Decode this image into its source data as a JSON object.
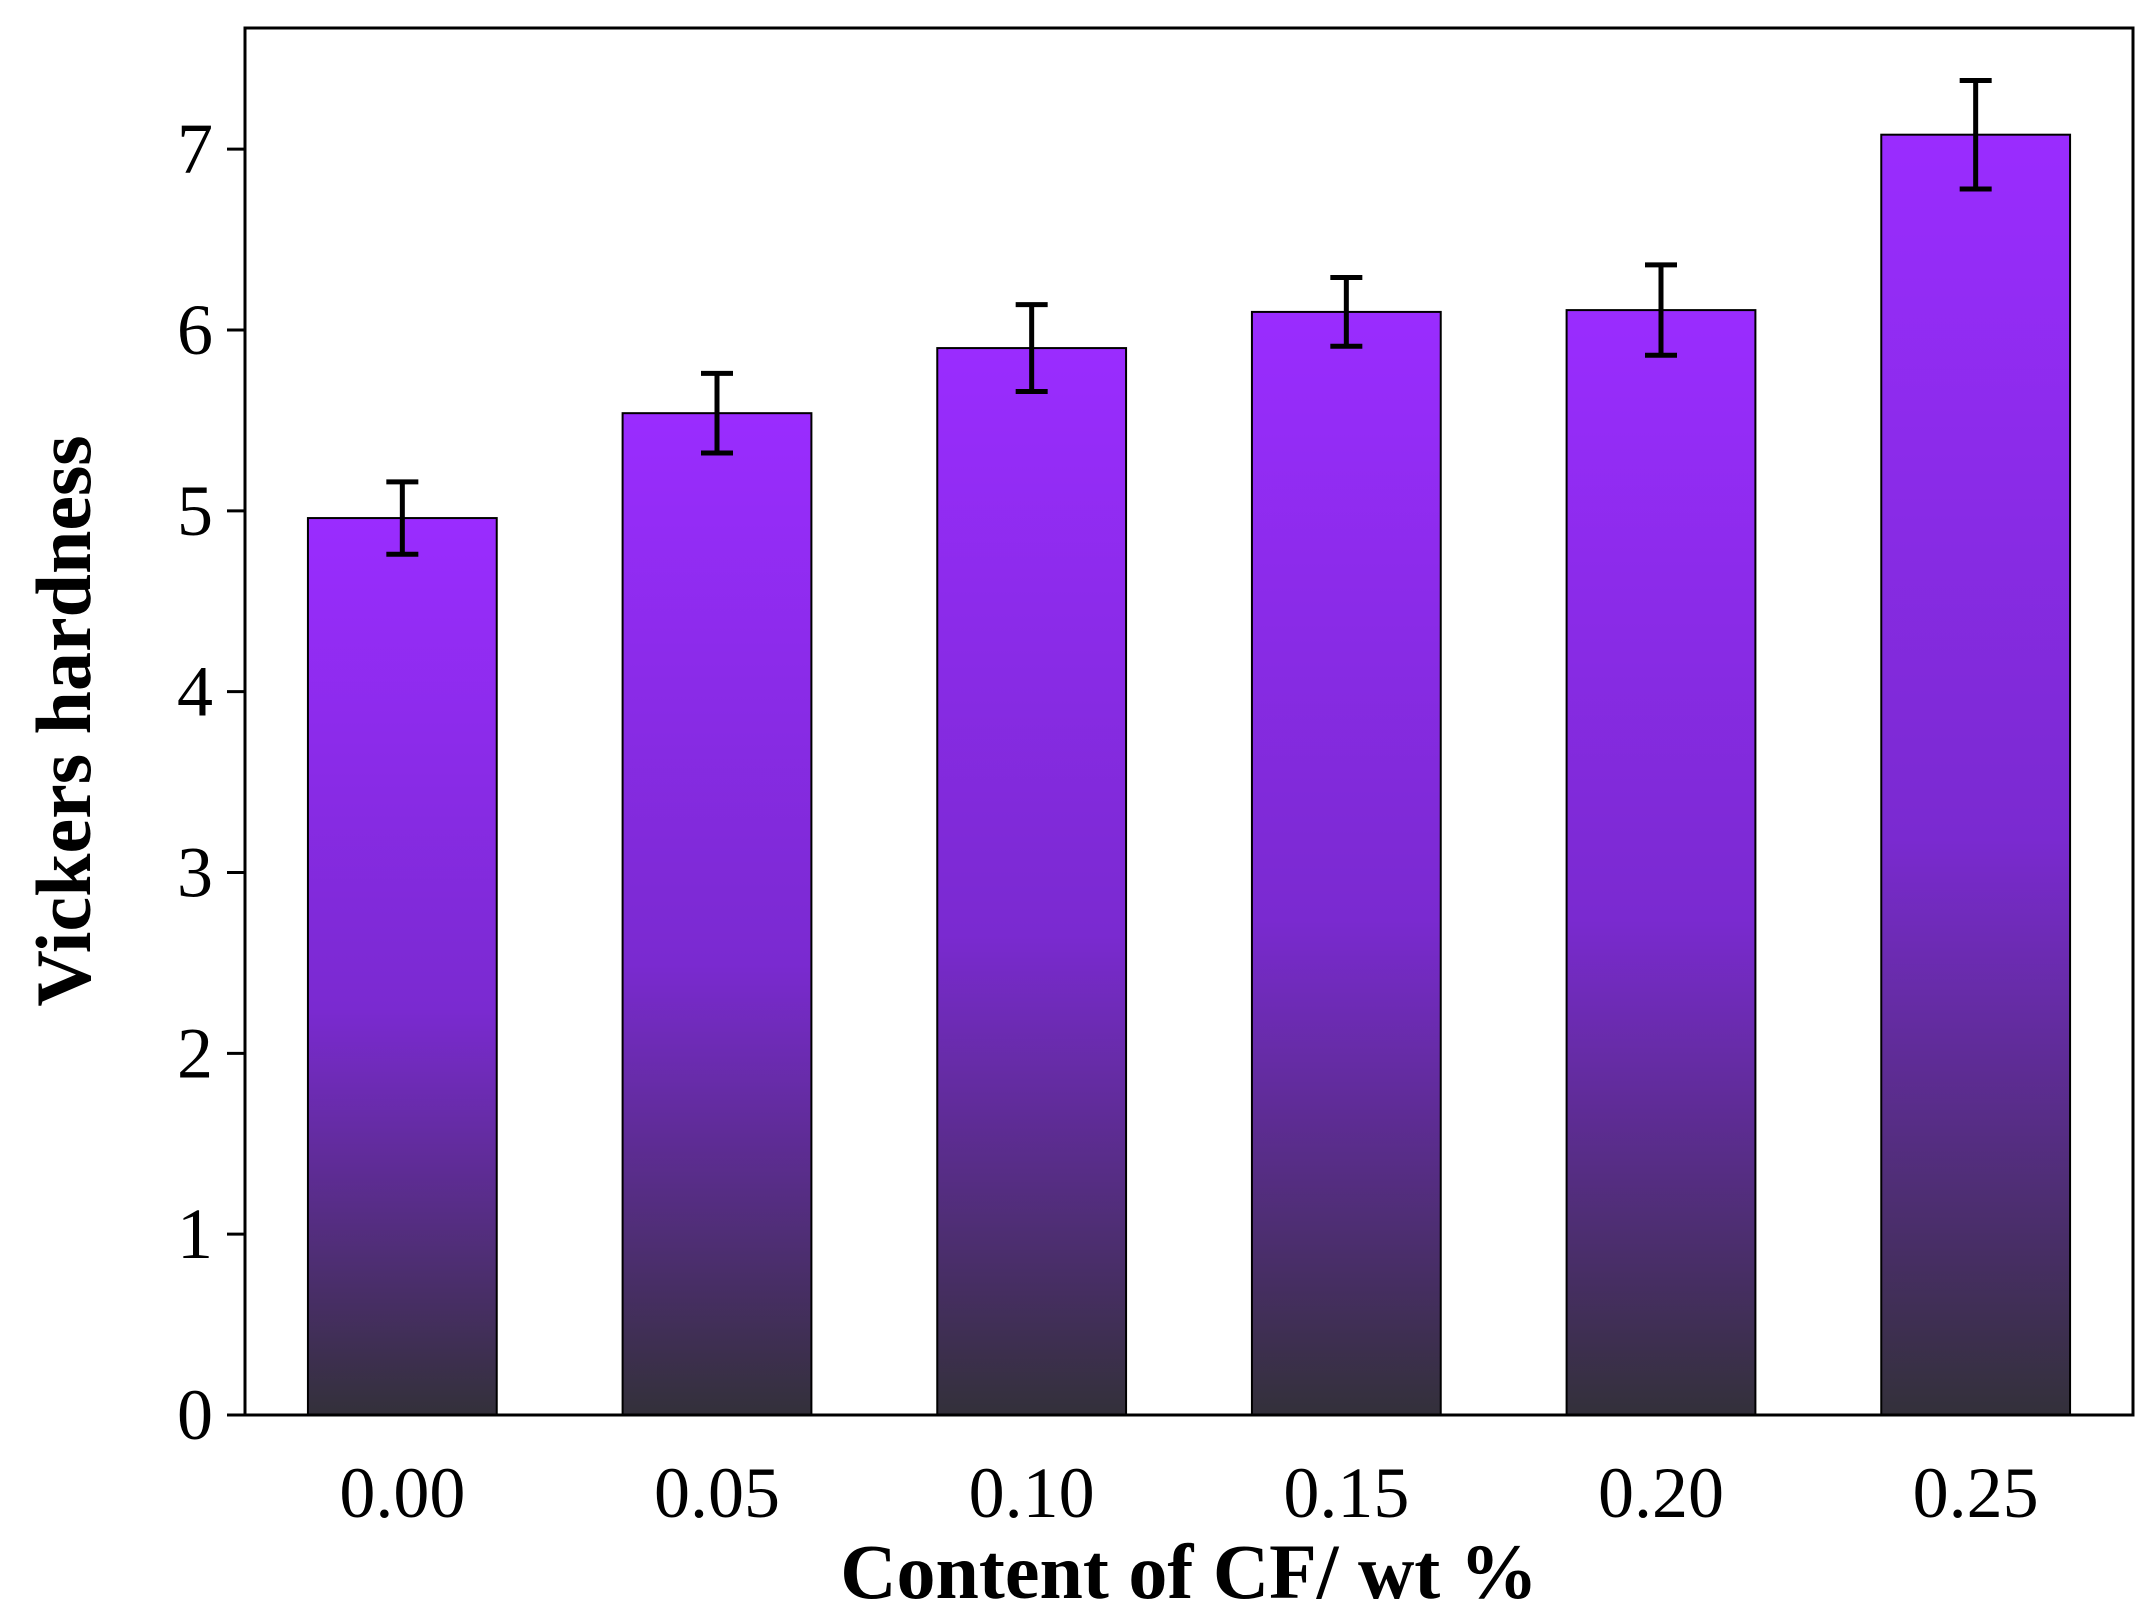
{
  "chart_data": {
    "type": "bar",
    "categories": [
      "0.00",
      "0.05",
      "0.10",
      "0.15",
      "0.20",
      "0.25"
    ],
    "values": [
      4.96,
      5.54,
      5.9,
      6.1,
      6.11,
      7.08
    ],
    "errors": [
      0.2,
      0.22,
      0.24,
      0.19,
      0.25,
      0.3
    ],
    "title": "",
    "xlabel": "Content of CF/ wt %",
    "ylabel": "Vickers hardness",
    "ylim": [
      0,
      7.67
    ],
    "yticks": [
      0,
      1,
      2,
      3,
      4,
      5,
      6,
      7
    ],
    "grid": false,
    "legend": "none",
    "colors": {
      "bar_top": "#9a2cff",
      "bar_mid": "#7a2ad0",
      "bar_bottom": "#33303a",
      "bar_edge": "#000000",
      "error_bar": "#000000"
    }
  }
}
